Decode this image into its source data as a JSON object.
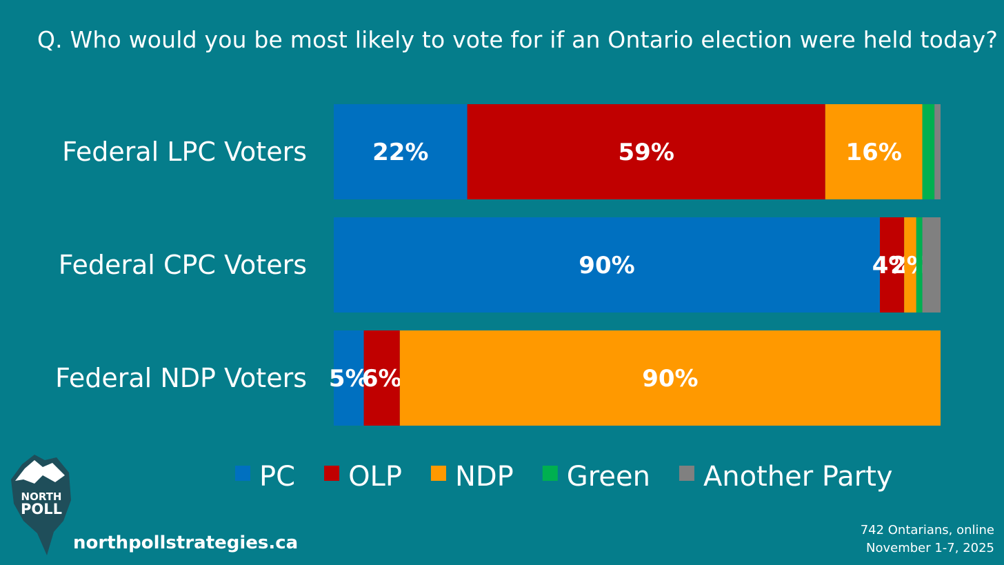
{
  "title": "Q. Who would you be most likely to vote for if an Ontario election were held today?",
  "chart_data": {
    "type": "bar",
    "orientation": "horizontal",
    "stacked": true,
    "categories": [
      "Federal LPC Voters",
      "Federal CPC Voters",
      "Federal NDP Voters"
    ],
    "series": [
      {
        "name": "PC",
        "color": "#0070c0",
        "values": [
          22,
          90,
          5
        ],
        "labels": [
          "22%",
          "90%",
          "5%"
        ]
      },
      {
        "name": "OLP",
        "color": "#c00000",
        "values": [
          59,
          4,
          6
        ],
        "labels": [
          "59%",
          "4%",
          "6%"
        ]
      },
      {
        "name": "NDP",
        "color": "#ff9900",
        "values": [
          16,
          2,
          90
        ],
        "labels": [
          "16%",
          "2%",
          "90%"
        ]
      },
      {
        "name": "Green",
        "color": "#00b050",
        "values": [
          2,
          1,
          0
        ],
        "labels": [
          "",
          "",
          ""
        ]
      },
      {
        "name": "Another Party",
        "color": "#808080",
        "values": [
          1,
          3,
          0
        ],
        "labels": [
          "",
          "",
          ""
        ]
      }
    ],
    "xlim": [
      0,
      100
    ],
    "legend_position": "bottom"
  },
  "footer": {
    "website": "northpollstrategies.ca",
    "sample": "742 Ontarians, online",
    "dates": "November 1-7, 2025",
    "logo_line1": "NORTH",
    "logo_line2": "POLL"
  }
}
